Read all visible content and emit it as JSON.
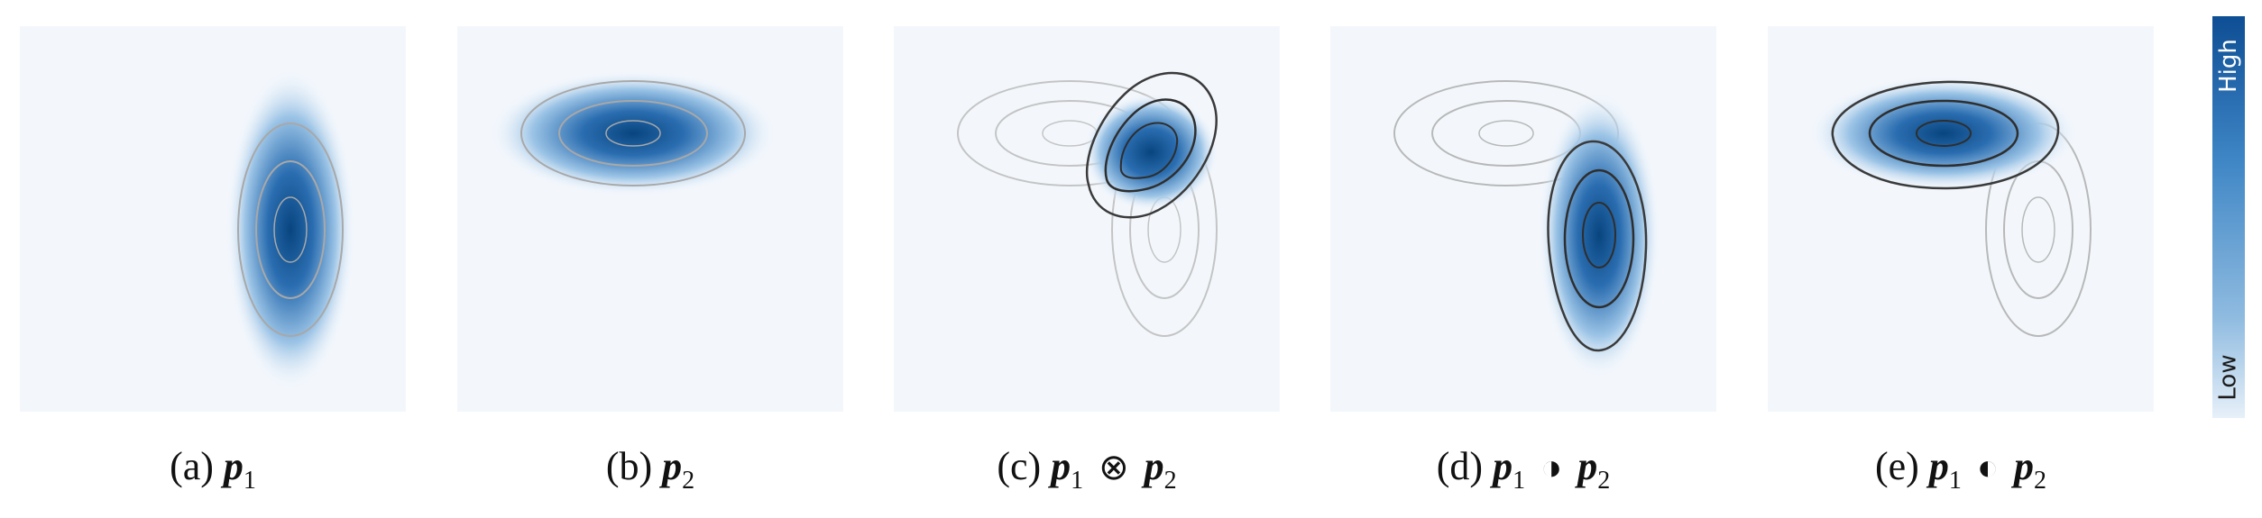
{
  "panels": [
    {
      "label": "(a)",
      "lhs": "p",
      "lhs_sub": "1",
      "op": "",
      "rhs": "",
      "rhs_sub": ""
    },
    {
      "label": "(b)",
      "lhs": "p",
      "lhs_sub": "2",
      "op": "",
      "rhs": "",
      "rhs_sub": ""
    },
    {
      "label": "(c)",
      "lhs": "p",
      "lhs_sub": "1",
      "op": "⊗",
      "rhs": "p",
      "rhs_sub": "2"
    },
    {
      "label": "(d)",
      "lhs": "p",
      "lhs_sub": "1",
      "op": "◑",
      "rhs": "p",
      "rhs_sub": "2"
    },
    {
      "label": "(e)",
      "lhs": "p",
      "lhs_sub": "1",
      "op": "◐",
      "rhs": "p",
      "rhs_sub": "2"
    }
  ],
  "colorbar": {
    "high": "High",
    "low": "Low"
  },
  "colors": {
    "density_high": "#08457f",
    "density_low": "#f3f7fc",
    "contour_faint": "#b0b0b0",
    "contour_dark": "#2e2e2e"
  }
}
